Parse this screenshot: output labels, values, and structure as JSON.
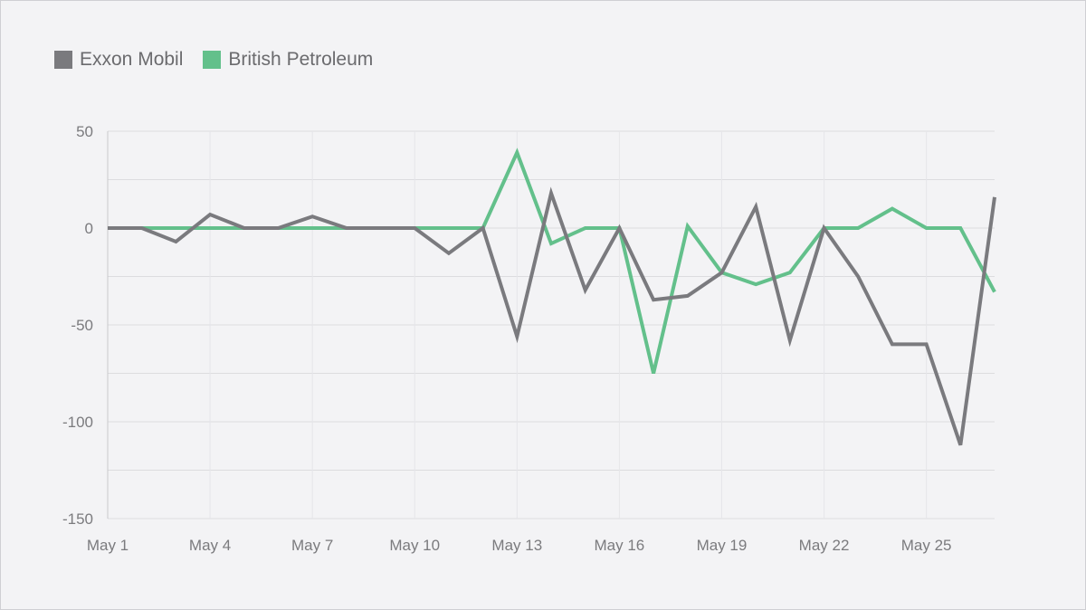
{
  "colors": {
    "exxon": "#7a7a7e",
    "bp": "#63c08b",
    "grid": "#dcdcdf",
    "axis": "#c8c8cc",
    "text": "#7b7b7e"
  },
  "legend": {
    "exxon_label": "Exxon Mobil",
    "bp_label": "British Petroleum"
  },
  "chart_data": {
    "type": "line",
    "title": "",
    "xlabel": "",
    "ylabel": "",
    "ylim": [
      -150,
      50
    ],
    "y_ticks": [
      50,
      0,
      -50,
      -100,
      -150
    ],
    "x_tick_labels": [
      "May 1",
      "May 4",
      "May 7",
      "May 10",
      "May 13",
      "May 16",
      "May 19",
      "May 22",
      "May 25"
    ],
    "x_tick_days": [
      1,
      4,
      7,
      10,
      13,
      16,
      19,
      22,
      25
    ],
    "x": [
      1,
      2,
      3,
      4,
      5,
      6,
      7,
      8,
      9,
      10,
      11,
      12,
      13,
      14,
      15,
      16,
      17,
      18,
      19,
      20,
      21,
      22,
      23,
      24,
      25,
      26,
      27
    ],
    "series": [
      {
        "name": "Exxon Mobil",
        "values": [
          0,
          0,
          -7,
          7,
          0,
          0,
          6,
          0,
          0,
          0,
          -13,
          0,
          -56,
          18,
          -32,
          0,
          -37,
          -35,
          -23,
          11,
          -58,
          0,
          -25,
          -60,
          -60,
          -112,
          16
        ]
      },
      {
        "name": "British Petroleum",
        "values": [
          0,
          0,
          0,
          0,
          0,
          0,
          0,
          0,
          0,
          0,
          0,
          0,
          39,
          -8,
          0,
          0,
          -75,
          1,
          -23,
          -29,
          -23,
          0,
          0,
          10,
          0,
          0,
          -33
        ]
      }
    ]
  }
}
